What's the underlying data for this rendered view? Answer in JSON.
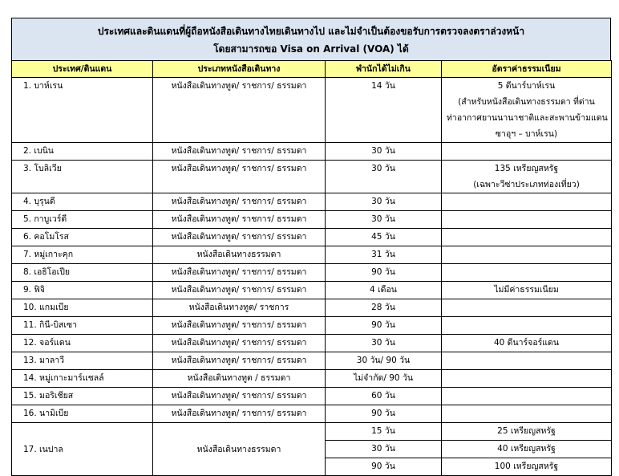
{
  "title": [
    "ประเทศและดินแดนที่ผู้ถือหนังสือเดินทางไทยเดินทางไป และไม่จำเป็นต้องขอรับการตรวจลงตราล่วงหน้า",
    "โดยสามารถขอ Visa on Arrival (VOA) ได้"
  ],
  "table": {
    "header": [
      "ประเทศ/ดินแดน",
      "ประเภทหนังสือเดินทาง",
      "พำนักได้ไม่เกิน",
      "อัตราค่าธรรมเนียม"
    ],
    "rows": [
      {
        "country": "1.  บาห์เรน",
        "passport": "หนังสือเดินทางทูต/ ราชการ/ ธรรมดา",
        "stay": "14 วัน",
        "fee": [
          "5 ดีนาร์บาห์เรน",
          "(สำหรับหนังสือเดินทางธรรมดา ที่ด่าน",
          "ท่าอากาศยานนานาชาติและสะพานข้ามแดน",
          "ซาอุฯ – บาห์เรน)"
        ]
      },
      {
        "country": "2.  เบนิน",
        "passport": "หนังสือเดินทางทูต/ ราชการ/ ธรรมดา",
        "stay": "30 วัน"
      },
      {
        "country": "3.  โบลิเวีย",
        "passport": "หนังสือเดินทางทูต/ ราชการ/ ธรรมดา",
        "stay": "30 วัน",
        "fee": [
          "135 เหรียญสหรัฐ",
          "(เฉพาะวีซ่าประเภทท่องเที่ยว)"
        ]
      },
      {
        "country": "4.  บุรุนดี",
        "passport": "หนังสือเดินทางทูต/ ราชการ/ ธรรมดา",
        "stay": "30 วัน"
      },
      {
        "country": "5.  กาบูเวร์ดี",
        "passport": "หนังสือเดินทางทูต/ ราชการ/ ธรรมดา",
        "stay": "30 วัน"
      },
      {
        "country": "6.  คอโมโรส",
        "passport": "หนังสือเดินทางทูต/ ราชการ/ ธรรมดา",
        "stay": "45 วัน"
      },
      {
        "country": "7.  หมู่เกาะคุก",
        "passport": "หนังสือเดินทางธรรมดา",
        "stay": "31 วัน"
      },
      {
        "country": "8.  เอธิโอเปีย",
        "passport": "หนังสือเดินทางทูต/ ราชการ/ ธรรมดา",
        "stay": "90 วัน"
      },
      {
        "country": "9.  ฟิจิ",
        "passport": "หนังสือเดินทางทูต/ ราชการ/ ธรรมดา",
        "stay": "4 เดือน",
        "fee": [
          "ไม่มีค่าธรรมเนียม"
        ]
      },
      {
        "country": "10. แกมเบีย",
        "passport": "หนังสือเดินทางทูต/ ราชการ",
        "stay": "28 วัน"
      },
      {
        "country": "11. กินี-บิสเซา",
        "passport": "หนังสือเดินทางทูต/ ราชการ/ ธรรมดา",
        "stay": "90 วัน"
      },
      {
        "country": "12. จอร์แดน",
        "passport": "หนังสือเดินทางทูต/ ราชการ/ ธรรมดา",
        "stay": "30 วัน",
        "fee": [
          "40 ดีนาร์จอร์แดน"
        ]
      },
      {
        "country": "13. มาลาวี",
        "passport": "หนังสือเดินทางทูต/ ราชการ/ ธรรมดา",
        "stay": "30 วัน/ 90 วัน"
      },
      {
        "country": "14. หมู่เกาะมาร์แชลล์",
        "passport": "หนังสือเดินทางทูต / ธรรมดา",
        "stay": "ไม่จำกัด/ 90 วัน"
      },
      {
        "country": "15. มอริเชียส",
        "passport": "หนังสือเดินทางทูต/ ราชการ/ ธรรมดา",
        "stay": "60 วัน"
      },
      {
        "country": "16. นามิเบีย",
        "passport": "หนังสือเดินทางทูต/ ราชการ/ ธรรมดา",
        "stay": "90 วัน"
      },
      {
        "country": "17. เนปาล",
        "passport": "หนังสือเดินทางธรรมดา",
        "stay": [
          "15 วัน",
          "30 วัน",
          "90 วัน"
        ],
        "fee": [
          "25 เหรียญสหรัฐ",
          "40 เหรียญสหรัฐ",
          "100 เหรียญสหรัฐ"
        ]
      }
    ]
  }
}
